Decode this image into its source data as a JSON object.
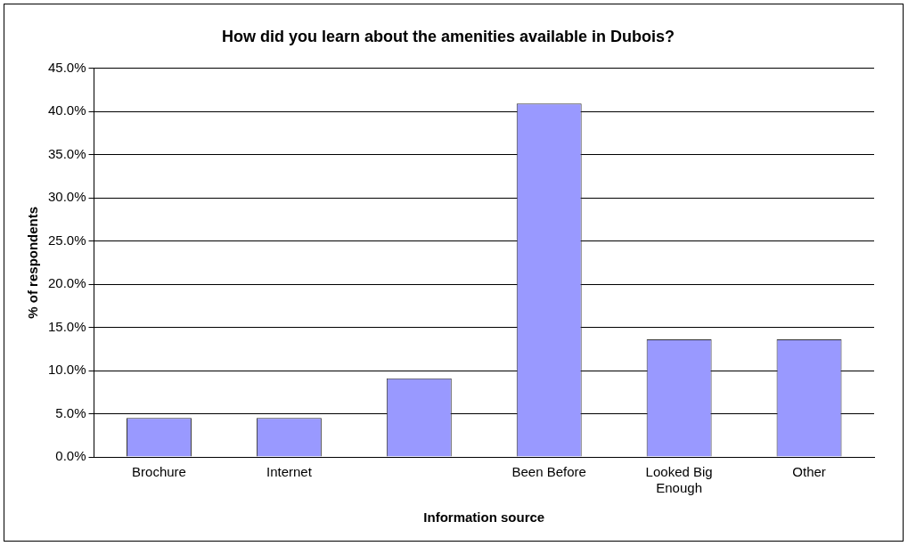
{
  "chart_data": {
    "type": "bar",
    "title": "How did you learn about the amenities available in Dubois?",
    "xlabel": "Information source",
    "ylabel": "% of respondents",
    "categories": [
      "Brochure",
      "Internet",
      null,
      "Been Before",
      "Looked Big Enough",
      "Other"
    ],
    "values": [
      4.5,
      4.5,
      9.1,
      40.9,
      13.6,
      13.6
    ],
    "color": "#9999ff",
    "ylim": [
      0,
      45
    ],
    "yticks": [
      {
        "value": 0,
        "label": "0.0%"
      },
      {
        "value": 5,
        "label": "5.0%"
      },
      {
        "value": 10,
        "label": "10.0%"
      },
      {
        "value": 15,
        "label": "15.0%"
      },
      {
        "value": 20,
        "label": "20.0%"
      },
      {
        "value": 25,
        "label": "25.0%"
      },
      {
        "value": 30,
        "label": "30.0%"
      },
      {
        "value": 35,
        "label": "35.0%"
      },
      {
        "value": 40,
        "label": "40.0%"
      },
      {
        "value": 45,
        "label": "45.0%"
      }
    ],
    "grid": "y",
    "legend": false
  }
}
